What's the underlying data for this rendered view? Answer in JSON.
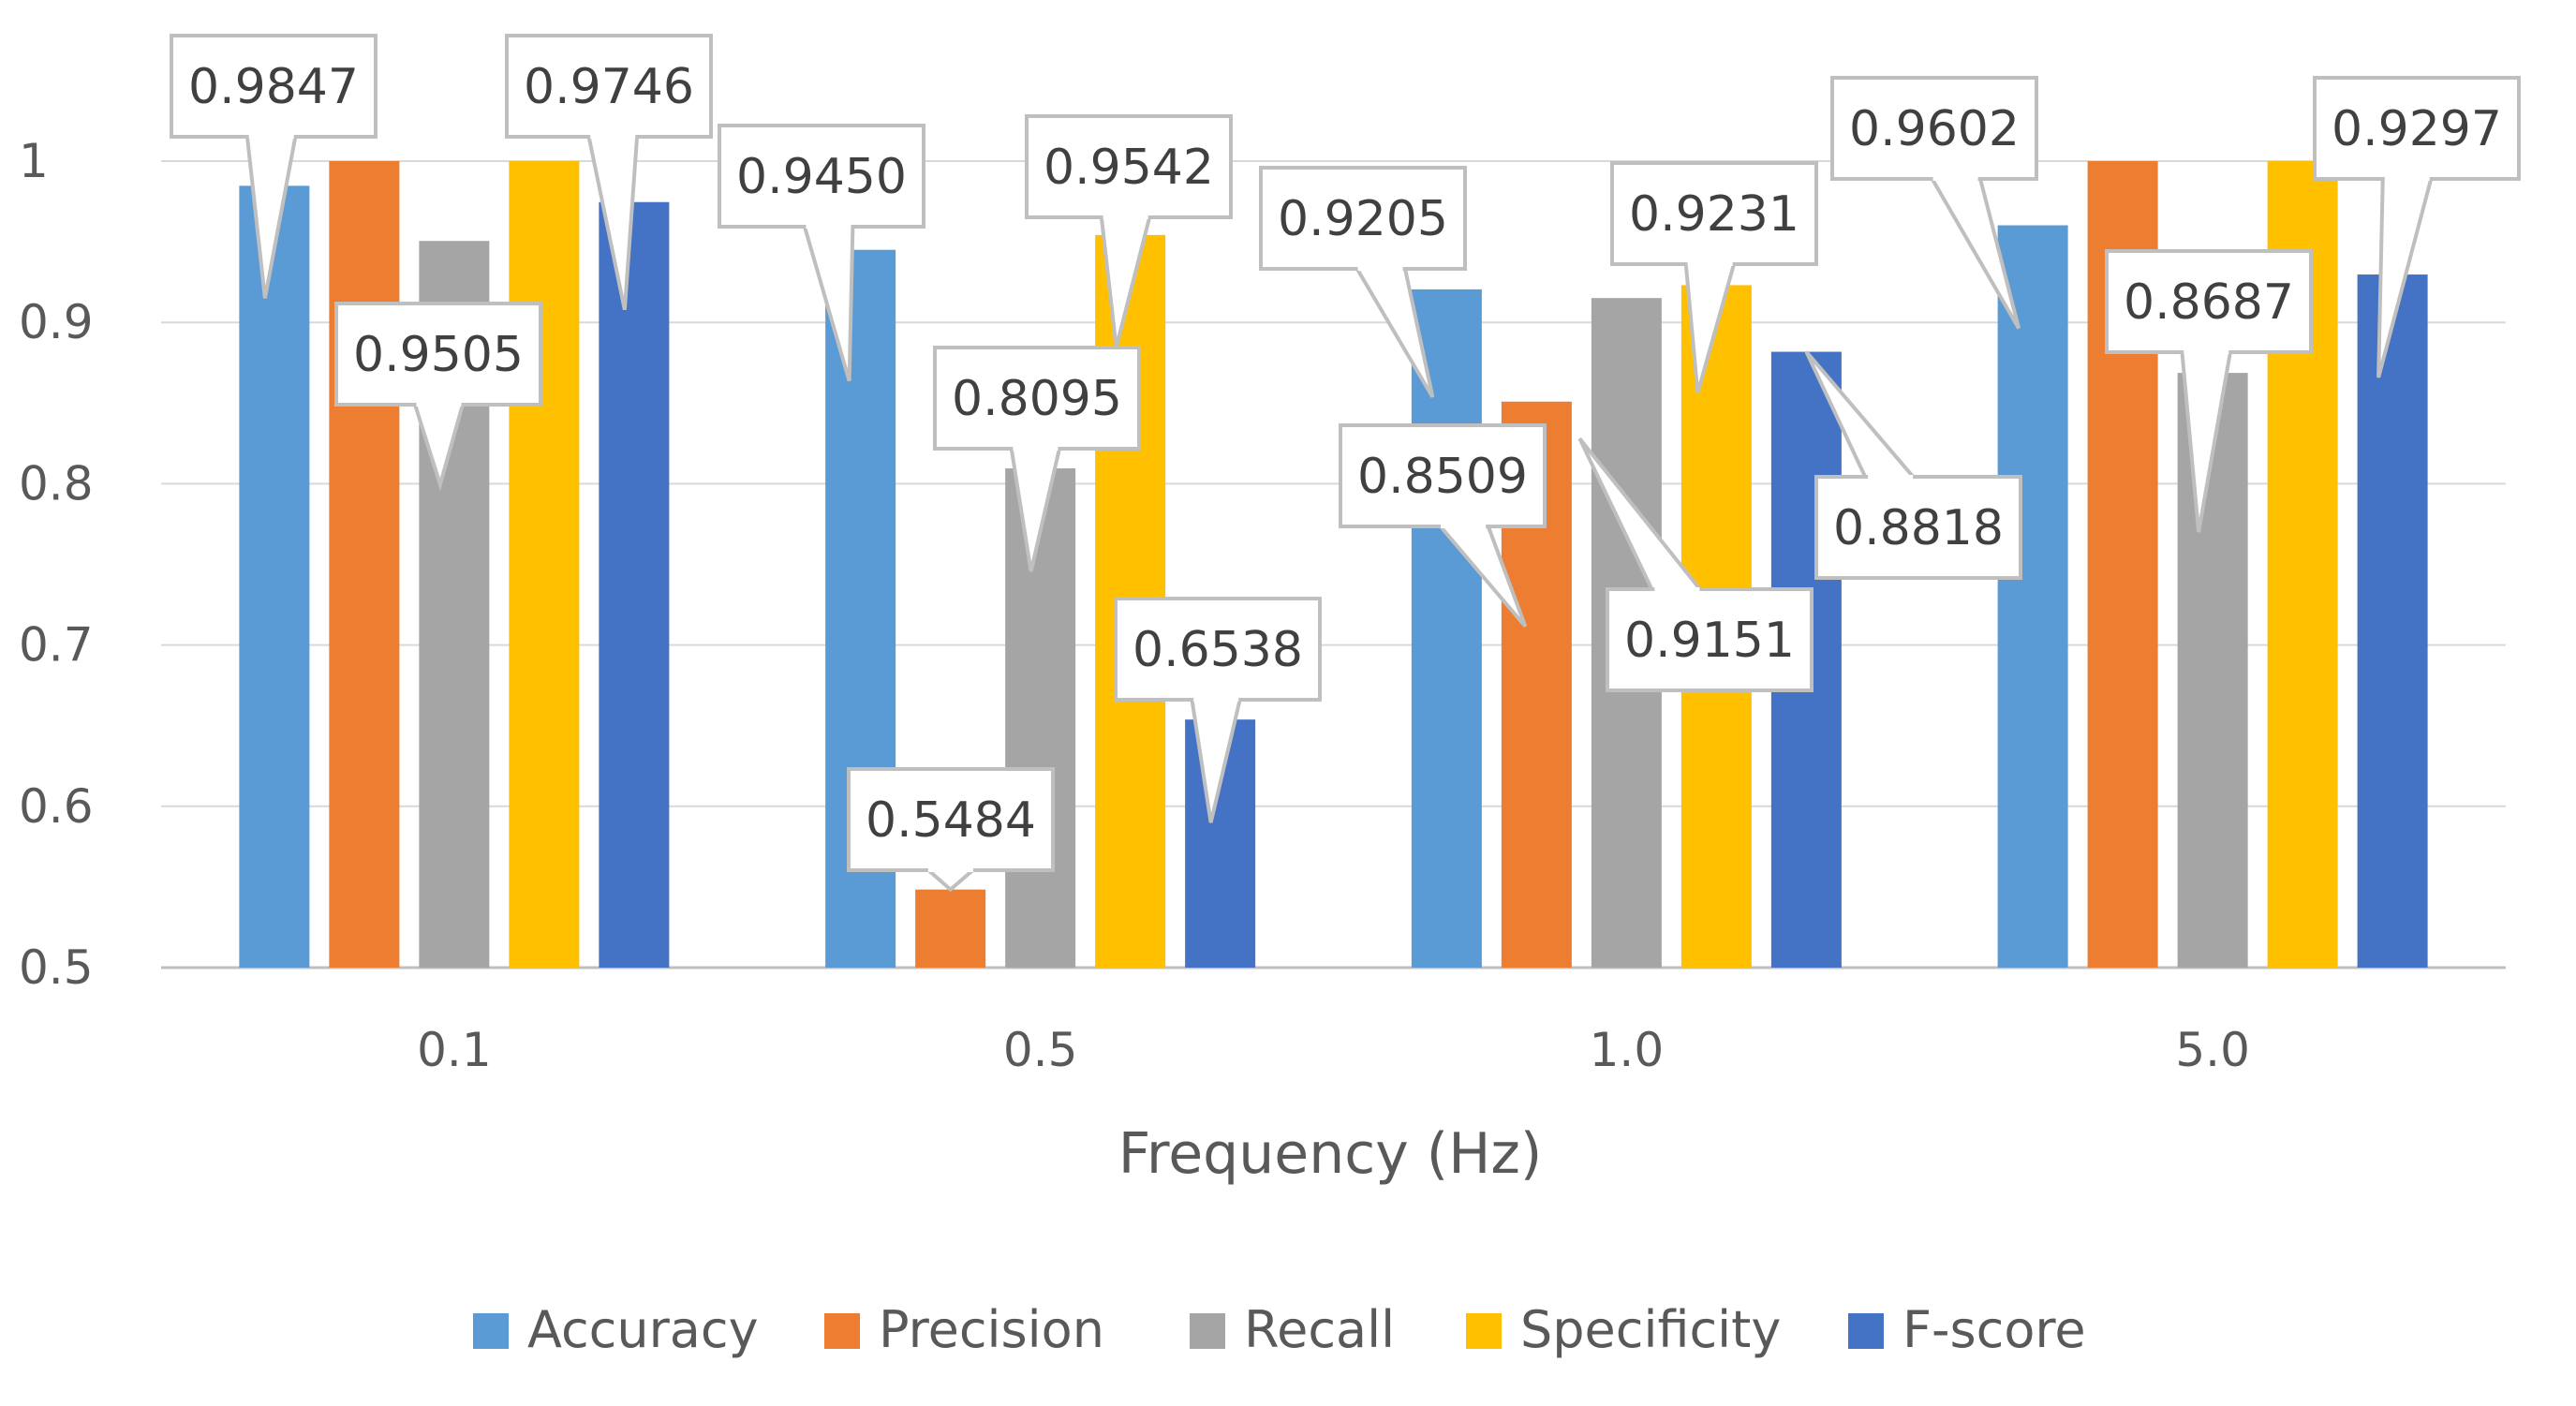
{
  "chart_data": {
    "type": "bar",
    "title": "",
    "xlabel": "Frequency (Hz)",
    "ylabel": "",
    "categories": [
      "0.1",
      "0.5",
      "1.0",
      "5.0"
    ],
    "ylim": [
      0.5,
      1.0
    ],
    "yticks": [
      0.5,
      0.6,
      0.7,
      0.8,
      0.9,
      1.0
    ],
    "ytick_labels": [
      "0.5",
      "0.6",
      "0.7",
      "0.8",
      "0.9",
      "1"
    ],
    "grid": true,
    "legend_position": "bottom",
    "series": [
      {
        "name": "Accuracy",
        "color": "#5B9BD5",
        "values": [
          0.9847,
          0.945,
          0.9205,
          0.9602
        ],
        "labels": [
          "0.9847",
          "0.9450",
          "0.9205",
          "0.9602"
        ],
        "show_labels": [
          true,
          true,
          true,
          true
        ]
      },
      {
        "name": "Precision",
        "color": "#ED7D31",
        "values": [
          1.0,
          0.5484,
          0.8509,
          1.0
        ],
        "labels": [
          "1",
          "0.5484",
          "0.8509",
          "1"
        ],
        "show_labels": [
          false,
          true,
          true,
          false
        ]
      },
      {
        "name": "Recall",
        "color": "#A5A5A5",
        "values": [
          0.9505,
          0.8095,
          0.9151,
          0.8687
        ],
        "labels": [
          "0.9505",
          "0.8095",
          "0.9151",
          "0.8687"
        ],
        "show_labels": [
          true,
          true,
          true,
          true
        ]
      },
      {
        "name": "Specificity",
        "color": "#FFC000",
        "values": [
          1.0,
          0.9542,
          0.9231,
          1.0
        ],
        "labels": [
          "1",
          "0.9542",
          "0.9231",
          "1"
        ],
        "show_labels": [
          false,
          true,
          true,
          false
        ]
      },
      {
        "name": "F-score",
        "color": "#4472C4",
        "values": [
          0.9746,
          0.6538,
          0.8818,
          0.9297
        ],
        "labels": [
          "0.9746",
          "0.6538",
          "0.8818",
          "0.9297"
        ],
        "show_labels": [
          true,
          true,
          true,
          true
        ]
      }
    ]
  }
}
